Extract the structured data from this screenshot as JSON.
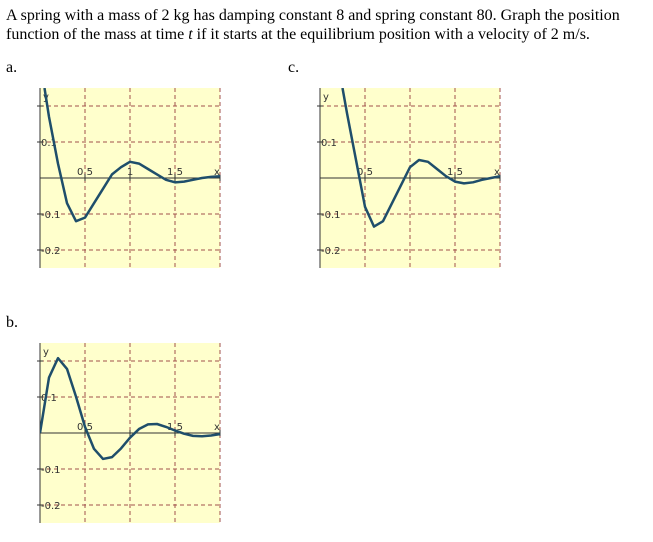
{
  "question": [
    "A spring with a mass of 2 kg has damping constant 8 and spring constant 80. Graph the position function of the mass at time ",
    "t",
    " if it starts at the equilibrium position with a velocity of 2 m/s."
  ],
  "chart_data": [
    {
      "type": "line",
      "label": "a.",
      "xlabel": "x",
      "ylabel": "y",
      "color": "#1f4e6b",
      "grid": true,
      "xlim": [
        0,
        2
      ],
      "ylim": [
        -0.25,
        0.25
      ],
      "xticks": [
        0.5,
        1,
        1.5,
        {
          "value": 2,
          "label": null
        }
      ],
      "yticks": [
        -0.2,
        -0.1,
        0.1,
        {
          "value": 0.2,
          "label": null
        }
      ],
      "x": [
        0.05,
        0.1,
        0.2,
        0.3,
        0.4,
        0.5,
        0.6,
        0.7,
        0.8,
        0.9,
        1.0,
        1.1,
        1.2,
        1.3,
        1.4,
        1.5,
        1.6,
        1.7,
        1.8,
        1.9,
        2.0
      ],
      "values": [
        0.25,
        0.17,
        0.04,
        -0.07,
        -0.12,
        -0.11,
        -0.07,
        -0.03,
        0.01,
        0.03,
        0.045,
        0.04,
        0.025,
        0.01,
        -0.005,
        -0.012,
        -0.01,
        -0.005,
        0,
        0.003,
        0.005
      ]
    },
    {
      "type": "line",
      "label": "b.",
      "xlabel": "x",
      "ylabel": "y",
      "color": "#1f4e6b",
      "grid": true,
      "xlim": [
        0,
        2
      ],
      "ylim": [
        -0.25,
        0.25
      ],
      "xticks": [
        0.5,
        {
          "value": 1,
          "label": null
        },
        1.5,
        {
          "value": 2,
          "label": null
        }
      ],
      "yticks": [
        -0.2,
        -0.1,
        0.1,
        {
          "value": 0.2,
          "label": null
        }
      ],
      "x": [
        0,
        0.1,
        0.2,
        0.3,
        0.4,
        0.5,
        0.6,
        0.7,
        0.8,
        0.9,
        1.0,
        1.1,
        1.2,
        1.3,
        1.4,
        1.5,
        1.6,
        1.7,
        1.8,
        1.9,
        2.0
      ],
      "values": [
        0,
        0.154,
        0.208,
        0.178,
        0.101,
        0.017,
        -0.044,
        -0.072,
        -0.067,
        -0.043,
        -0.013,
        0.011,
        0.024,
        0.025,
        0.017,
        0.007,
        -0.002,
        -0.008,
        -0.009,
        -0.007,
        -0.003
      ]
    },
    {
      "type": "line",
      "label": "c.",
      "xlabel": "x",
      "ylabel": "y",
      "color": "#1f4e6b",
      "grid": true,
      "xlim": [
        0,
        2
      ],
      "ylim": [
        -0.25,
        0.25
      ],
      "xticks": [
        0.5,
        {
          "value": 1,
          "label": null
        },
        1.5,
        {
          "value": 2,
          "label": null
        }
      ],
      "yticks": [
        -0.2,
        -0.1,
        0.1,
        {
          "value": 0.2,
          "label": null
        }
      ],
      "x": [
        0.25,
        0.3,
        0.4,
        0.5,
        0.6,
        0.7,
        0.8,
        0.9,
        1.0,
        1.1,
        1.2,
        1.3,
        1.4,
        1.5,
        1.6,
        1.7,
        1.8,
        1.9,
        2.0
      ],
      "values": [
        0.25,
        0.18,
        0.05,
        -0.08,
        -0.135,
        -0.12,
        -0.07,
        -0.02,
        0.03,
        0.05,
        0.045,
        0.025,
        0.005,
        -0.01,
        -0.015,
        -0.012,
        -0.005,
        0,
        0.005
      ]
    }
  ]
}
